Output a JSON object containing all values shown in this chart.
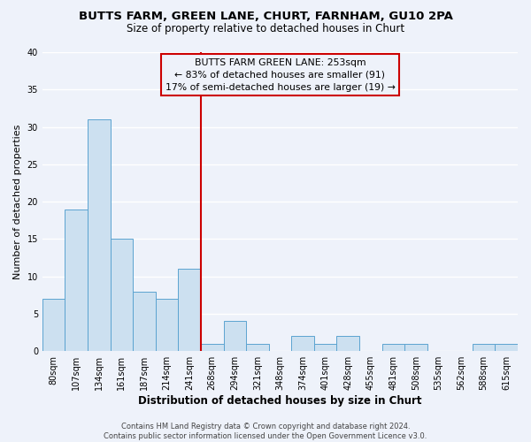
{
  "title": "BUTTS FARM, GREEN LANE, CHURT, FARNHAM, GU10 2PA",
  "subtitle": "Size of property relative to detached houses in Churt",
  "xlabel": "Distribution of detached houses by size in Churt",
  "ylabel": "Number of detached properties",
  "bin_labels": [
    "80sqm",
    "107sqm",
    "134sqm",
    "161sqm",
    "187sqm",
    "214sqm",
    "241sqm",
    "268sqm",
    "294sqm",
    "321sqm",
    "348sqm",
    "374sqm",
    "401sqm",
    "428sqm",
    "455sqm",
    "481sqm",
    "508sqm",
    "535sqm",
    "562sqm",
    "588sqm",
    "615sqm"
  ],
  "bar_heights": [
    7,
    19,
    31,
    15,
    8,
    7,
    11,
    1,
    4,
    1,
    0,
    2,
    1,
    2,
    0,
    1,
    1,
    0,
    0,
    1,
    1
  ],
  "bar_color": "#cce0f0",
  "bar_edgecolor": "#5ba3d0",
  "ylim": [
    0,
    40
  ],
  "yticks": [
    0,
    5,
    10,
    15,
    20,
    25,
    30,
    35,
    40
  ],
  "vline_color": "#cc0000",
  "annotation_text": "BUTTS FARM GREEN LANE: 253sqm\n← 83% of detached houses are smaller (91)\n17% of semi-detached houses are larger (19) →",
  "annotation_box_edgecolor": "#cc0000",
  "footer_text": "Contains HM Land Registry data © Crown copyright and database right 2024.\nContains public sector information licensed under the Open Government Licence v3.0.",
  "background_color": "#eef2fa"
}
